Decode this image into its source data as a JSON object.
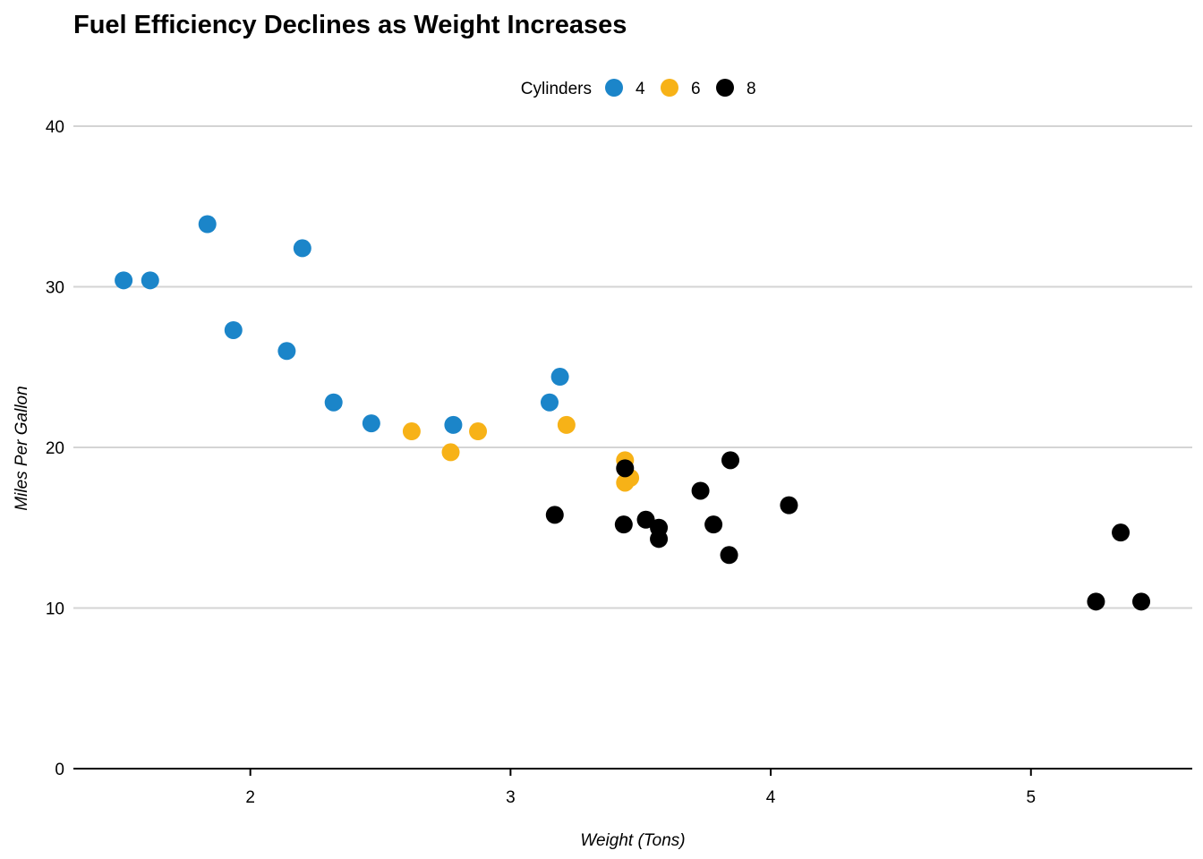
{
  "chart_data": {
    "type": "scatter",
    "title": "Fuel Efficiency Declines as Weight Increases",
    "xlabel": "Weight (Tons)",
    "ylabel": "Miles Per Gallon",
    "xlim": [
      1.32,
      5.62
    ],
    "ylim": [
      0,
      40
    ],
    "x_ticks": [
      2,
      3,
      4,
      5
    ],
    "y_ticks": [
      0,
      10,
      20,
      30,
      40
    ],
    "grid": "horizontal",
    "legend": {
      "title": "Cylinders",
      "position": "top-center"
    },
    "series": [
      {
        "name": "4",
        "color": "#1b85c9",
        "points": [
          {
            "x": 1.513,
            "y": 30.4
          },
          {
            "x": 1.615,
            "y": 30.4
          },
          {
            "x": 1.835,
            "y": 33.9
          },
          {
            "x": 1.935,
            "y": 27.3
          },
          {
            "x": 2.14,
            "y": 26.0
          },
          {
            "x": 2.2,
            "y": 32.4
          },
          {
            "x": 2.32,
            "y": 22.8
          },
          {
            "x": 2.465,
            "y": 21.5
          },
          {
            "x": 2.78,
            "y": 21.4
          },
          {
            "x": 3.15,
            "y": 22.8
          },
          {
            "x": 3.19,
            "y": 24.4
          }
        ]
      },
      {
        "name": "6",
        "color": "#f7b217",
        "points": [
          {
            "x": 2.62,
            "y": 21.0
          },
          {
            "x": 2.77,
            "y": 19.7
          },
          {
            "x": 2.875,
            "y": 21.0
          },
          {
            "x": 3.215,
            "y": 21.4
          },
          {
            "x": 3.44,
            "y": 19.2
          },
          {
            "x": 3.44,
            "y": 17.8
          },
          {
            "x": 3.46,
            "y": 18.1
          }
        ]
      },
      {
        "name": "8",
        "color": "#000000",
        "points": [
          {
            "x": 3.17,
            "y": 15.8
          },
          {
            "x": 3.435,
            "y": 15.2
          },
          {
            "x": 3.44,
            "y": 18.7
          },
          {
            "x": 3.52,
            "y": 15.5
          },
          {
            "x": 3.57,
            "y": 14.3
          },
          {
            "x": 3.57,
            "y": 15.0
          },
          {
            "x": 3.73,
            "y": 17.3
          },
          {
            "x": 3.78,
            "y": 15.2
          },
          {
            "x": 3.84,
            "y": 13.3
          },
          {
            "x": 3.845,
            "y": 19.2
          },
          {
            "x": 4.07,
            "y": 16.4
          },
          {
            "x": 5.25,
            "y": 10.4
          },
          {
            "x": 5.345,
            "y": 14.7
          },
          {
            "x": 5.424,
            "y": 10.4
          }
        ]
      }
    ]
  }
}
